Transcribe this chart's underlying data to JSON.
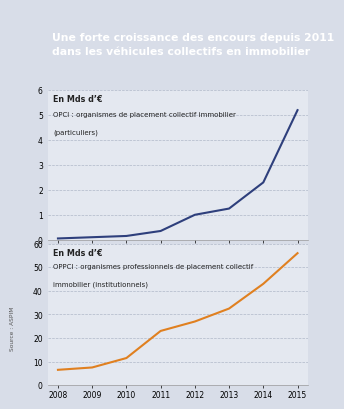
{
  "title_line1": "Une forte croissance des encours depuis 2011",
  "title_line2": "dans les véhicules collectifs en immobilier",
  "title_bg": "#4a5b8c",
  "title_color": "#ffffff",
  "bg_color": "#d8dde8",
  "chart_bg": "#e4e8f0",
  "source": "Source : ASPIM",
  "opci_years": [
    2008,
    2009,
    2010,
    2011,
    2012,
    2013,
    2014,
    2015
  ],
  "opci_values": [
    0.05,
    0.1,
    0.15,
    0.35,
    1.0,
    1.25,
    2.3,
    5.2
  ],
  "opci_label_line1": "En Mds d’€",
  "opci_label_line2": "OPCI : organismes de placement collectif immobilier",
  "opci_label_line3": "(particuliers)",
  "opci_color": "#2e3f7c",
  "opci_ylim": [
    0,
    6
  ],
  "opci_yticks": [
    0,
    1,
    2,
    3,
    4,
    5,
    6
  ],
  "oppci_years": [
    2008,
    2009,
    2010,
    2011,
    2012,
    2013,
    2014,
    2015
  ],
  "oppci_values": [
    6.5,
    7.5,
    11.5,
    23.0,
    27.0,
    32.5,
    43.0,
    56.0
  ],
  "oppci_label_line1": "En Mds d’€",
  "oppci_label_line2": "OPPCI : organismes professionnels de placement collectif",
  "oppci_label_line3": "immobilier (institutionnels)",
  "oppci_color": "#e08020",
  "oppci_ylim": [
    0,
    60
  ],
  "oppci_yticks": [
    0,
    10,
    20,
    30,
    40,
    50,
    60
  ]
}
